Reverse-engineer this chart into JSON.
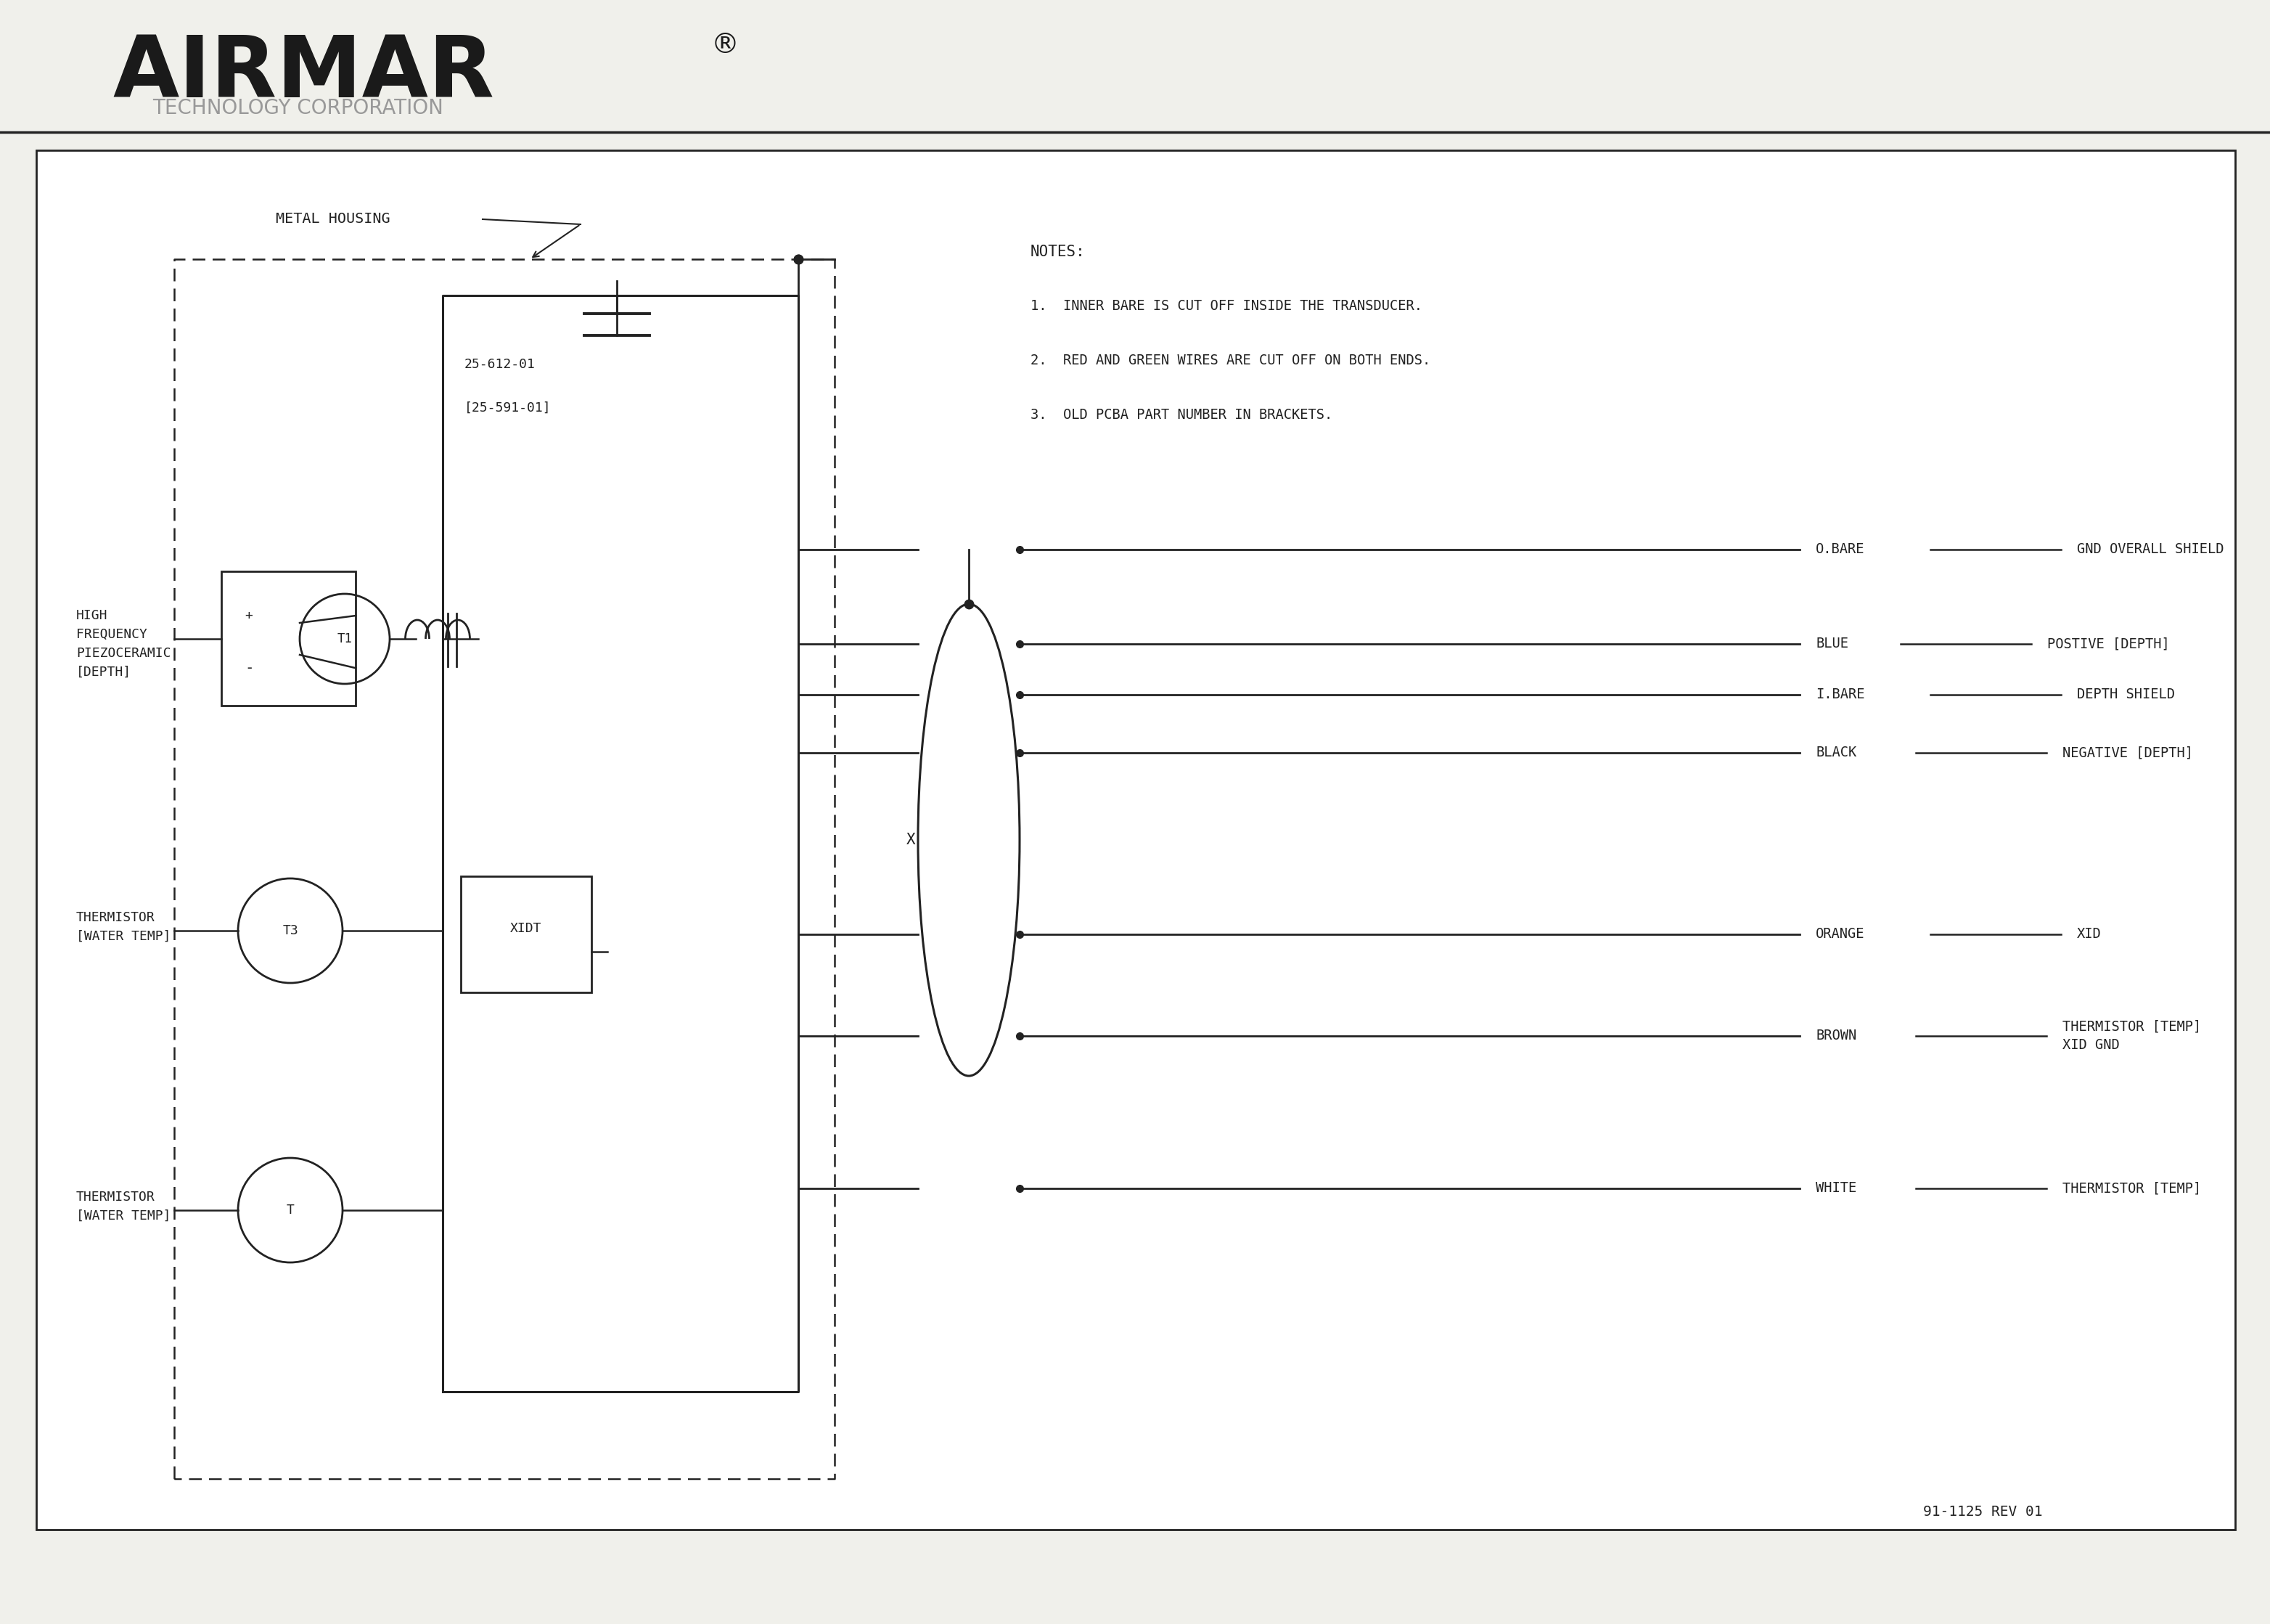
{
  "bg_color": "#f0f0eb",
  "line_color": "#222222",
  "text_color": "#222222",
  "gray_text": "#999999",
  "title": "AIRMAR",
  "subtitle": "TECHNOLOGY CORPORATION",
  "doc_number": "91-1125 REV 01",
  "notes": [
    "NOTES:",
    "1.  INNER BARE IS CUT OFF INSIDE THE TRANSDUCER.",
    "2.  RED AND GREEN WIRES ARE CUT OFF ON BOTH ENDS.",
    "3.  OLD PCBA PART NUMBER IN BRACKETS."
  ],
  "wire_labels_left": [
    "O.BARE",
    "BLUE",
    "I.BARE",
    "BLACK",
    "ORANGE",
    "BROWN",
    "WHITE"
  ],
  "wire_labels_right": [
    "GND OVERALL SHIELD",
    "POSTIVE [DEPTH]",
    "DEPTH SHIELD",
    "NEGATIVE [DEPTH]",
    "XID",
    "THERMISTOR [TEMP]\nXID GND",
    "THERMISTOR [TEMP]"
  ],
  "wire_y_abs": [
    14.8,
    13.5,
    12.8,
    12.0,
    9.5,
    8.1,
    6.0
  ],
  "pcb_label1": "25-612-01",
  "pcb_label2": "[25-591-01]",
  "xidt_label": "XIDT"
}
